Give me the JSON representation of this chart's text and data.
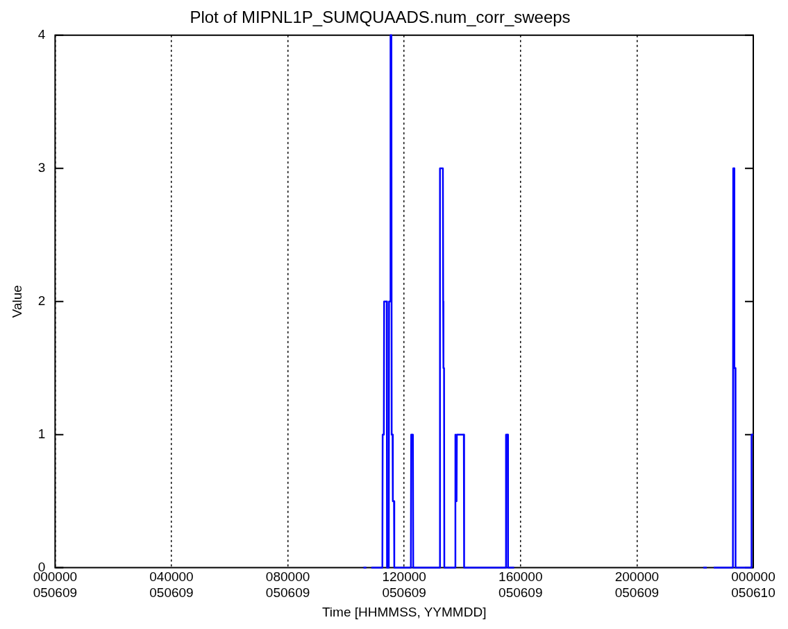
{
  "chart_data": {
    "type": "line",
    "title": "Plot of MIPNL1P_SUMQUAADS.num_corr_sweeps",
    "xlabel": "Time [HHMMSS, YYMMDD]",
    "ylabel": "Value",
    "x": [
      "--06-09T10:36:00",
      "--06-09T10:42:00",
      "--06-09T10:45:00",
      "--06-09T10:52:12",
      "--06-09T11:15:00",
      "--06-09T11:15:36",
      "--06-09T11:18:00",
      "--06-09T11:18:36",
      "--06-09T11:24:00",
      "--06-09T11:24:36",
      "--06-09T11:28:12",
      "--06-09T11:28:48",
      "--06-09T11:31:12",
      "--06-09T11:31:48",
      "--06-09T11:33:36",
      "--06-09T11:34:12",
      "--06-09T11:36:00",
      "--06-09T11:36:36",
      "--06-09T11:39:00",
      "--06-09T11:39:36",
      "--06-09T12:13:48",
      "--06-09T12:14:24",
      "--06-09T12:18:00",
      "--06-09T12:18:36",
      "--06-09T13:13:12",
      "--06-09T13:13:48",
      "--06-09T13:19:48",
      "--06-09T13:20:24",
      "--06-09T13:21:00",
      "--06-09T13:22:12",
      "--06-09T13:22:48",
      "--06-09T13:45:00",
      "--06-09T13:45:36",
      "--06-09T13:46:48",
      "--06-09T13:48:00",
      "--06-09T13:48:36",
      "--06-09T14:03:00",
      "--06-09T14:03:36",
      "--06-09T15:29:24",
      "--06-09T15:30:00",
      "--06-09T15:33:36",
      "--06-09T15:34:12",
      "--06-09T15:46:48",
      "--06-09T15:54:00",
      "--06-09T22:17:00",
      "--06-09T22:24:00",
      "--06-09T22:30:00",
      "--06-09T22:38:24",
      "--06-09T23:18:00",
      "--06-09T23:18:36",
      "--06-09T23:20:24",
      "--06-09T23:21:00",
      "--06-09T23:22:48",
      "--06-09T23:23:24",
      "--06-09T23:55:48",
      "--06-09T23:56:24",
      "--06-10T00:00"
    ],
    "series": [
      {
        "color": "#0000ff",
        "values": [
          0,
          0,
          null,
          0,
          0,
          1,
          1,
          2,
          2,
          0,
          0,
          2,
          2,
          4,
          4,
          1,
          1,
          0.5,
          0.5,
          0,
          0,
          1,
          1,
          0,
          0,
          3,
          3,
          2,
          1.5,
          1.5,
          0,
          0,
          1,
          0.5,
          0.5,
          1,
          1,
          0,
          0,
          1,
          1,
          0,
          0,
          null,
          0,
          0,
          null,
          0,
          0,
          3,
          3,
          1.5,
          1.5,
          0,
          0,
          1,
          1
        ]
      }
    ],
    "xlim": [
      "--06-09T00:00",
      "--06-10T00:00"
    ],
    "xticks": [
      {
        "value": "--06-09T00:00",
        "label": "000000\n050609"
      },
      {
        "value": "--06-09T04:00",
        "label": "040000\n050609"
      },
      {
        "value": "--06-09T08:00",
        "label": "080000\n050609"
      },
      {
        "value": "--06-09T12:00",
        "label": "120000\n050609"
      },
      {
        "value": "--06-09T16:00",
        "label": "160000\n050609"
      },
      {
        "value": "--06-09T20:00",
        "label": "200000\n050609"
      },
      {
        "value": "--06-10T00:00",
        "label": "000000\n050610"
      }
    ],
    "ylim": [
      0,
      4
    ],
    "yticks": [
      0,
      1,
      2,
      3,
      4
    ],
    "grid": "x",
    "legend": false,
    "marker": "none",
    "line_style": "solid"
  }
}
